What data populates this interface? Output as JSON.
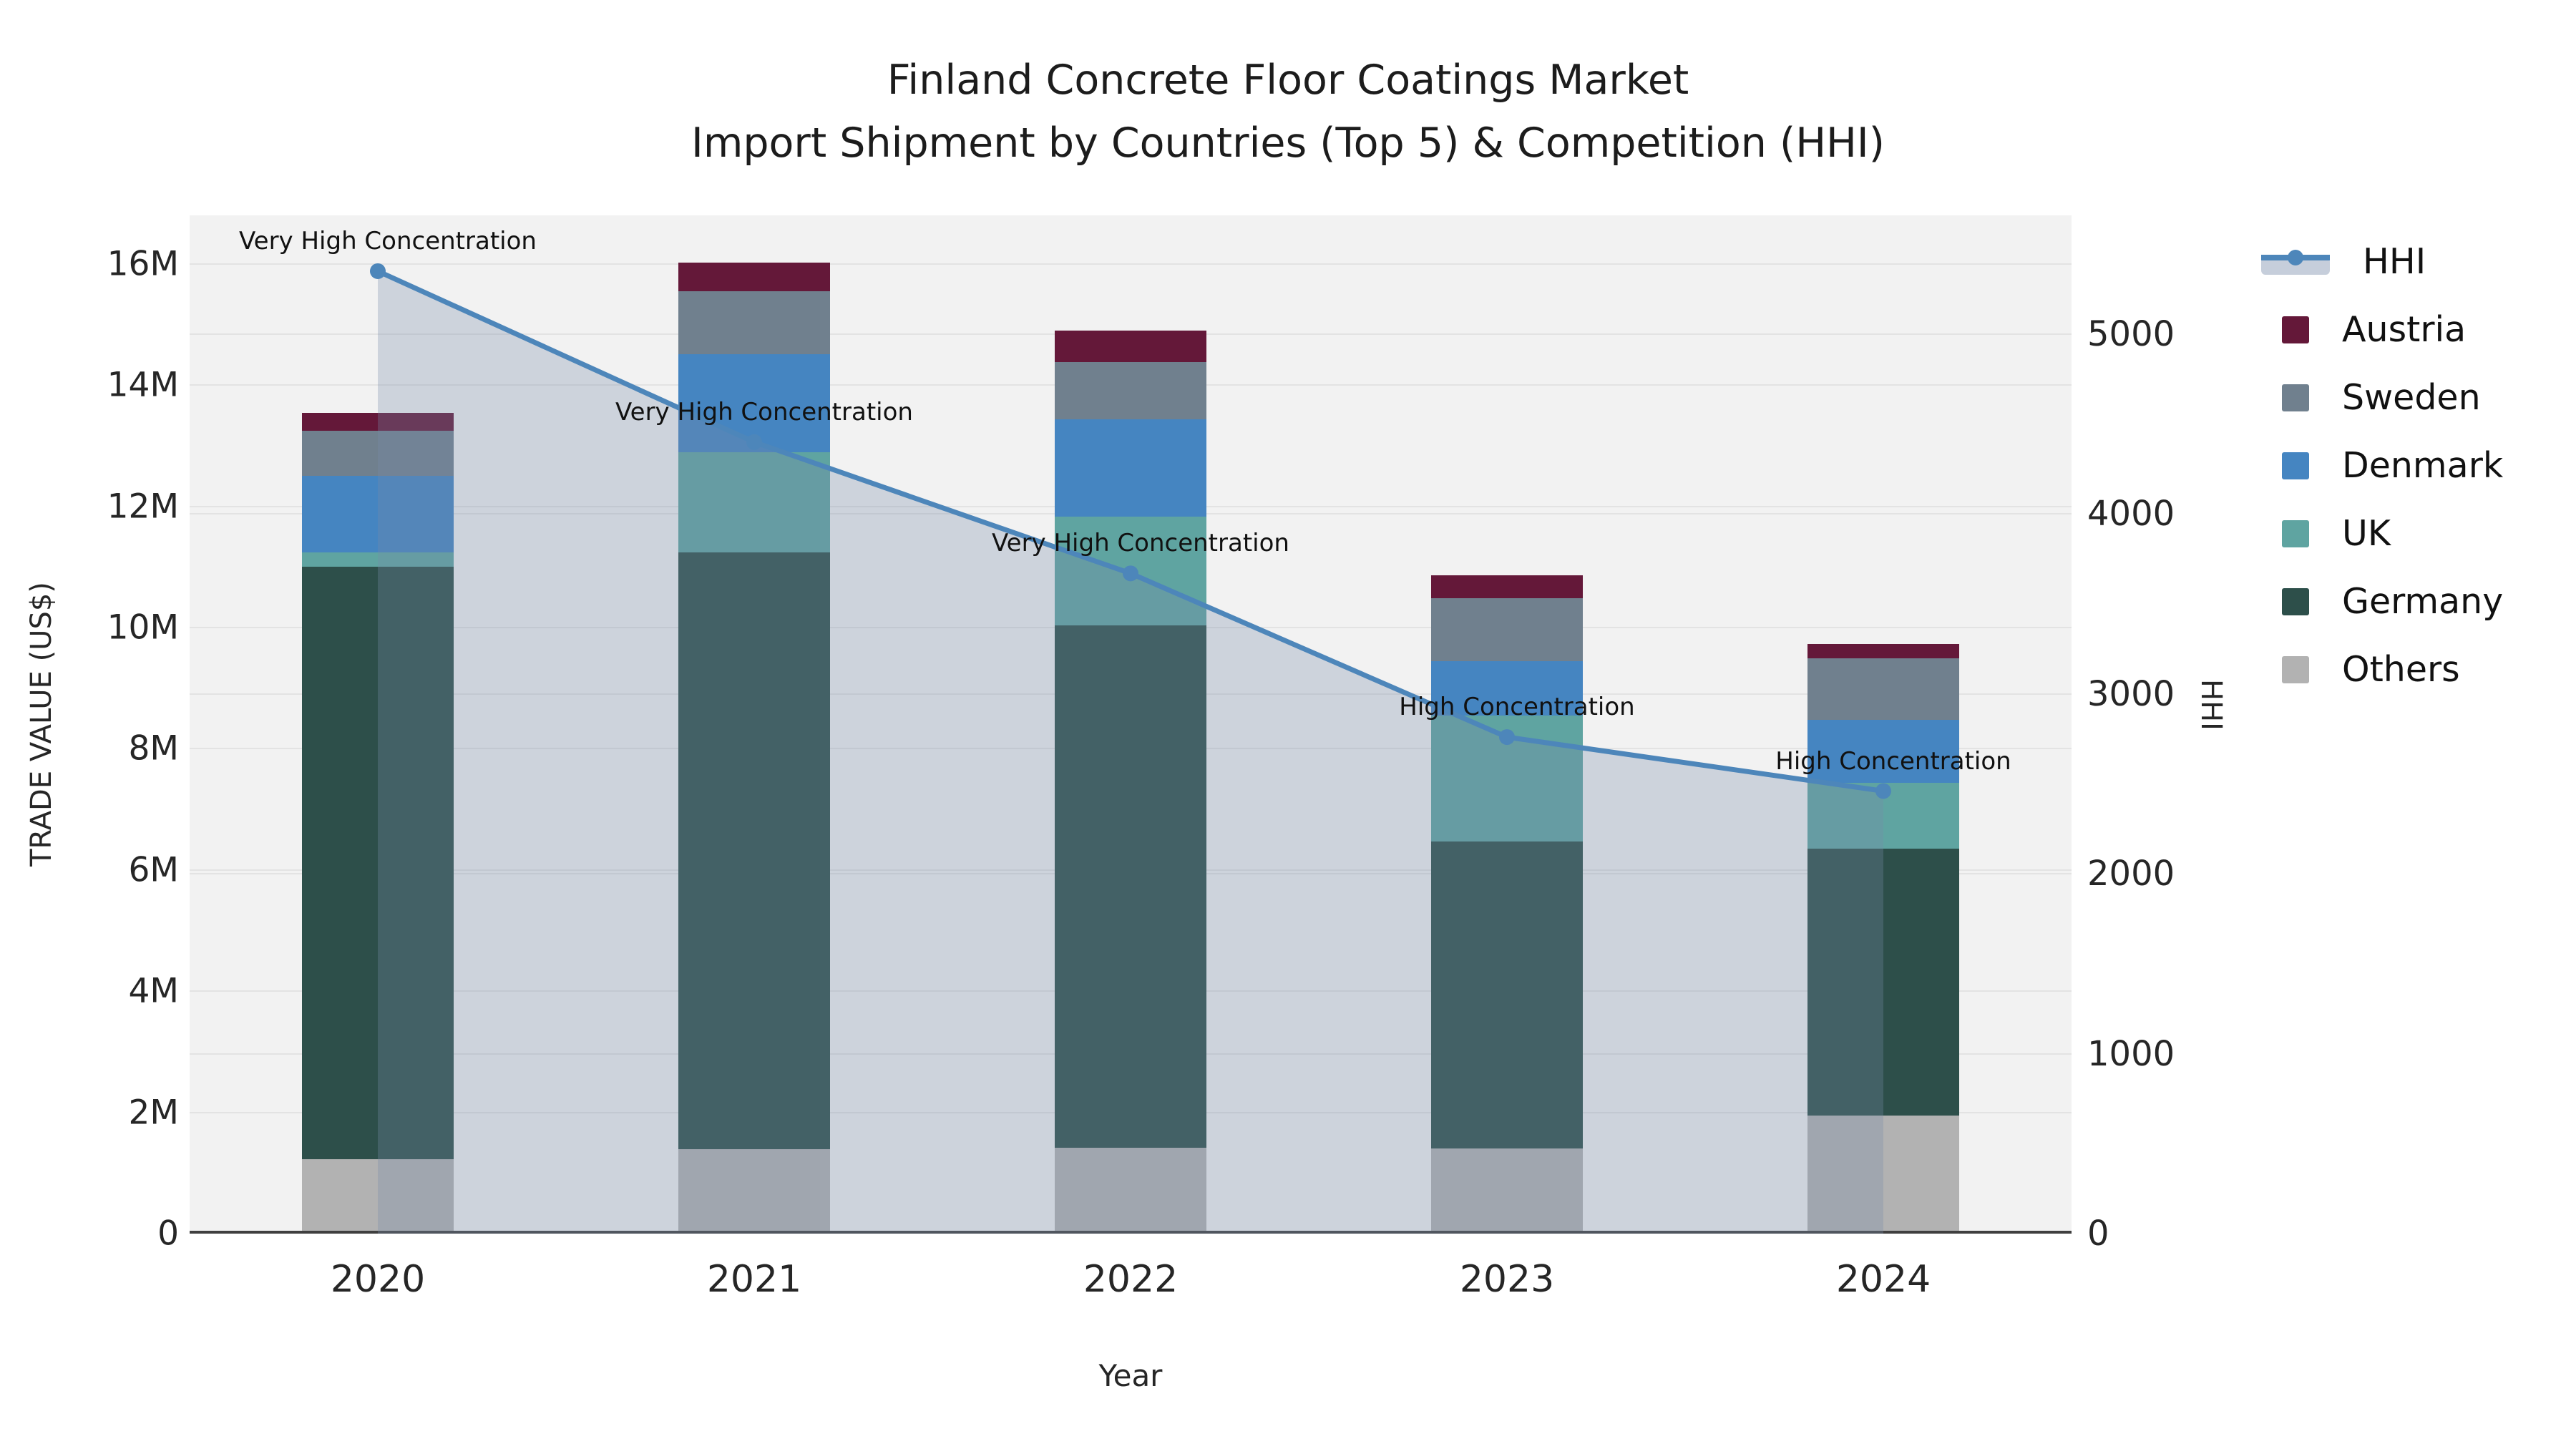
{
  "title": {
    "line1": "Finland Concrete Floor Coatings Market",
    "line2": "Import Shipment by Countries (Top 5) & Competition (HHI)"
  },
  "axes": {
    "x": {
      "title": "Year",
      "categories": [
        "2020",
        "2021",
        "2022",
        "2023",
        "2024"
      ]
    },
    "y_left": {
      "title": "TRADE VALUE (US$)",
      "tick_labels": [
        "0",
        "2M",
        "4M",
        "6M",
        "8M",
        "10M",
        "12M",
        "14M",
        "16M"
      ],
      "tick_values": [
        0,
        2,
        4,
        6,
        8,
        10,
        12,
        14,
        16
      ],
      "max": 16.8
    },
    "y_right": {
      "title": "HHI",
      "tick_labels": [
        "0",
        "1000",
        "2000",
        "3000",
        "4000",
        "5000"
      ],
      "tick_values": [
        0,
        1000,
        2000,
        3000,
        4000,
        5000
      ],
      "max": 5660
    }
  },
  "chart_data": {
    "type": "stacked-bar+line",
    "categories": [
      "2020",
      "2021",
      "2022",
      "2023",
      "2024"
    ],
    "value_unit": "million US$",
    "series": [
      {
        "name": "Others",
        "color": "#b2b2b2",
        "values": [
          1.18,
          1.35,
          1.37,
          1.36,
          1.9
        ]
      },
      {
        "name": "Germany",
        "color": "#2d4f4a",
        "values": [
          9.78,
          9.84,
          8.62,
          5.06,
          4.41
        ]
      },
      {
        "name": "UK",
        "color": "#5fa4a1",
        "values": [
          0.23,
          1.65,
          1.79,
          2.08,
          1.08
        ]
      },
      {
        "name": "Denmark",
        "color": "#4585c1",
        "values": [
          1.27,
          1.62,
          1.61,
          0.9,
          1.04
        ]
      },
      {
        "name": "Sweden",
        "color": "#70808e",
        "values": [
          0.74,
          1.04,
          0.94,
          1.04,
          1.02
        ]
      },
      {
        "name": "Austria",
        "color": "#641839",
        "values": [
          0.3,
          0.47,
          0.52,
          0.37,
          0.23
        ]
      }
    ],
    "stack_totals": [
      13.5,
      15.97,
      14.85,
      10.81,
      9.68
    ],
    "hhi": {
      "name": "HHI",
      "color": "#4d86ba",
      "area_color": "rgba(120, 140, 170, 0.30)",
      "values": [
        5350,
        4400,
        3670,
        2760,
        2460
      ]
    },
    "annotations": [
      {
        "category": "2020",
        "text": "Very High Concentration"
      },
      {
        "category": "2021",
        "text": "Very High Concentration"
      },
      {
        "category": "2022",
        "text": "Very High Concentration"
      },
      {
        "category": "2023",
        "text": "High Concentration"
      },
      {
        "category": "2024",
        "text": "High Concentration"
      }
    ],
    "legend_order": [
      "HHI",
      "Austria",
      "Sweden",
      "Denmark",
      "UK",
      "Germany",
      "Others"
    ],
    "grid": true,
    "plot_background": "#f2f2f2",
    "legend_position": "right"
  }
}
